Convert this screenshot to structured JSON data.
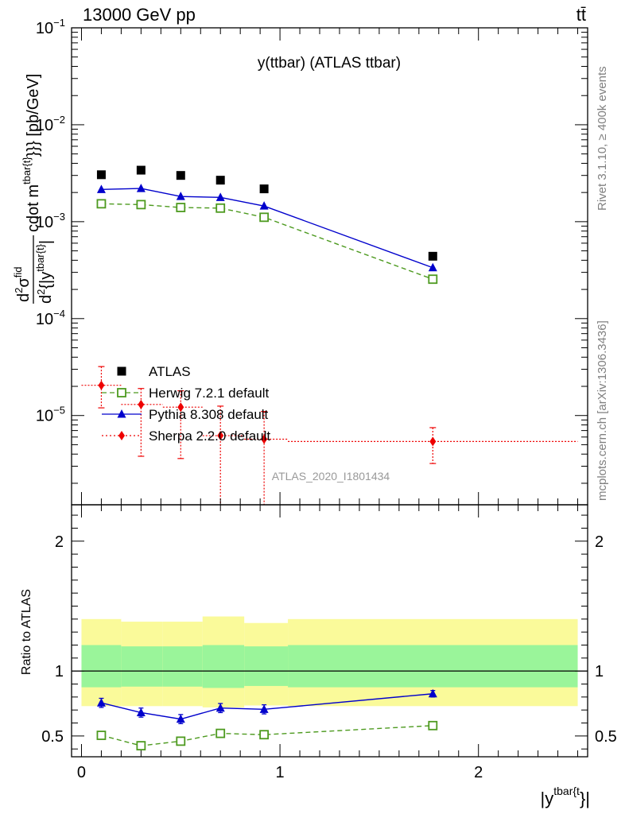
{
  "header": {
    "left": "13000 GeV pp",
    "right": "tt̄"
  },
  "side_labels": {
    "rivet": "Rivet 3.1.10, ≥ 400k events",
    "mcplots": "mcplots.cern.ch [arXiv:1306.3436]"
  },
  "chart_data": [
    {
      "type": "scatter",
      "panel": "main",
      "title": "y(ttbar) (ATLAS ttbar)",
      "watermark": "ATLAS_2020_I1801434",
      "ylabel": "d²σ^fid / d²{|y^tbar{t}|} cdot m^tbar{t}}} [pb/GeV]",
      "ylabel_parts": {
        "num_d": "d",
        "num_exp": "2",
        "num_sigma": "σ",
        "num_fid": "fid",
        "den_d": "d",
        "den_exp": "2",
        "den_body": "{|y",
        "den_sup": "tbar{t}",
        "den_end": "|",
        "rest_pre": "cdot m",
        "rest_sup": "tbar{t}",
        "rest_post": "}}} [pb/GeV]"
      },
      "yscale": "log",
      "ylim": [
        1.2e-06,
        0.1
      ],
      "xlim": [
        -0.05,
        2.55
      ],
      "y_ticklabels": [
        {
          "v": 1e-05,
          "base": "10",
          "exp": "−5"
        },
        {
          "v": 0.0001,
          "base": "10",
          "exp": "−4"
        },
        {
          "v": 0.001,
          "base": "10",
          "exp": "−3"
        },
        {
          "v": 0.01,
          "base": "10",
          "exp": "−2"
        },
        {
          "v": 0.1,
          "base": "10",
          "exp": "−1"
        }
      ],
      "legend_position": "left, middle",
      "series": [
        {
          "name": "ATLAS",
          "color": "#000000",
          "marker": "square-filled",
          "x": [
            0.1,
            0.3,
            0.5,
            0.7,
            0.92,
            1.77
          ],
          "y": [
            0.00305,
            0.0034,
            0.003,
            0.00268,
            0.00218,
            0.00044
          ]
        },
        {
          "name": "Herwig 7.2.1 default",
          "color": "#4d9a1f",
          "marker": "square-open",
          "line": "dashed",
          "x": [
            0.1,
            0.3,
            0.5,
            0.7,
            0.92,
            1.77
          ],
          "y": [
            0.00153,
            0.0015,
            0.0014,
            0.00138,
            0.00111,
            0.000255
          ]
        },
        {
          "name": "Pythia 8.308 default",
          "color": "#0000cc",
          "marker": "triangle-filled",
          "line": "solid",
          "x": [
            0.1,
            0.3,
            0.5,
            0.7,
            0.92,
            1.77
          ],
          "y": [
            0.00215,
            0.0022,
            0.00182,
            0.00178,
            0.00145,
            0.000335
          ]
        },
        {
          "name": "Sherpa 2.2.0 default",
          "color": "#ee0000",
          "marker": "diamond-filled",
          "line": "dotted",
          "x": [
            0.1,
            0.3,
            0.5,
            0.7,
            0.92,
            1.77
          ],
          "y": [
            2.05e-05,
            1.3e-05,
            1.22e-05,
            6.2e-06,
            5.7e-06,
            5.4e-06
          ],
          "y_low": [
            1.2e-05,
            3.8e-06,
            3.6e-06,
            1e-06,
            1e-06,
            3.2e-06
          ],
          "y_high": [
            3.2e-05,
            1.9e-05,
            1.8e-05,
            1.25e-05,
            1.1e-05,
            7.5e-06
          ]
        }
      ]
    },
    {
      "type": "line",
      "panel": "ratio",
      "ylabel": "Ratio to ATLAS",
      "xlabel": "|y^tbar{t}}|",
      "xlabel_parts": {
        "pre": "|y",
        "sup": "tbar{t",
        "post": "}|"
      },
      "ylim": [
        0.34,
        2.28
      ],
      "xlim": [
        -0.05,
        2.55
      ],
      "x_ticks": [
        0,
        1,
        2
      ],
      "y_ticks": [
        0.5,
        1,
        2
      ],
      "bands": {
        "edges": [
          0,
          0.2,
          0.41,
          0.61,
          0.82,
          1.04,
          2.5
        ],
        "inner_low": [
          0.875,
          0.88,
          0.88,
          0.87,
          0.885,
          0.875
        ],
        "inner_high": [
          1.2,
          1.19,
          1.19,
          1.2,
          1.19,
          1.2
        ],
        "outer_low": [
          0.73,
          0.73,
          0.73,
          0.72,
          0.735,
          0.73
        ],
        "outer_high": [
          1.4,
          1.38,
          1.38,
          1.42,
          1.37,
          1.4
        ],
        "inner_color": "#9af59a",
        "outer_color": "#fafa9a"
      },
      "series": [
        {
          "name": "Pythia 8.308 default",
          "color": "#0000cc",
          "marker": "triangle-filled",
          "line": "solid",
          "x": [
            0.1,
            0.3,
            0.5,
            0.7,
            0.92,
            1.77
          ],
          "y": [
            0.755,
            0.68,
            0.63,
            0.715,
            0.705,
            0.825
          ],
          "err": [
            0.035,
            0.035,
            0.035,
            0.035,
            0.035,
            0.025
          ]
        },
        {
          "name": "Herwig 7.2.1 default",
          "color": "#4d9a1f",
          "marker": "square-open",
          "line": "dashed",
          "x": [
            0.1,
            0.3,
            0.5,
            0.7,
            0.92,
            1.77
          ],
          "y": [
            0.505,
            0.425,
            0.46,
            0.52,
            0.51,
            0.58
          ],
          "err": [
            0.025,
            0.025,
            0.025,
            0.025,
            0.025,
            0.02
          ]
        }
      ]
    }
  ]
}
